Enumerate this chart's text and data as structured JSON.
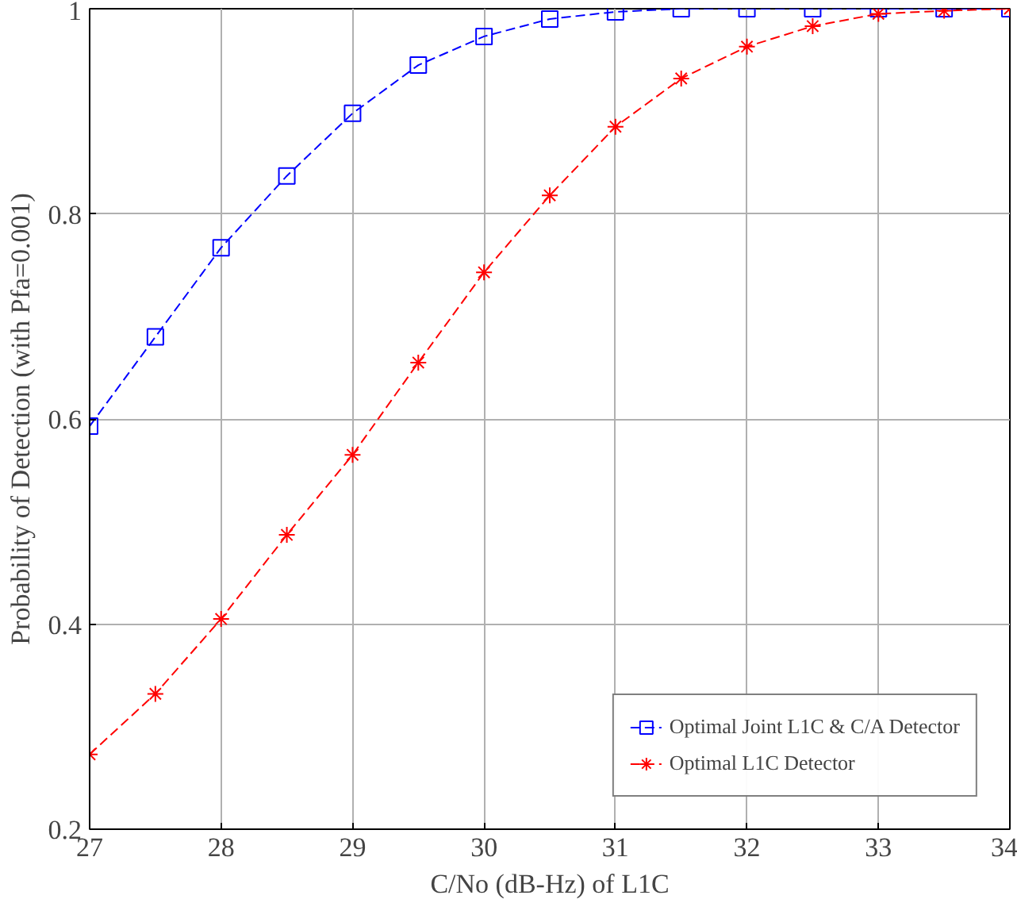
{
  "chart_data": {
    "type": "line",
    "xlabel": "C/No (dB-Hz) of L1C",
    "ylabel": "Probability of Detection (with Pfa=0.001)",
    "x": [
      27,
      27.5,
      28,
      28.5,
      29,
      29.5,
      30,
      30.5,
      31,
      31.5,
      32,
      32.5,
      33,
      33.5,
      34
    ],
    "series": [
      {
        "name": "Optimal Joint L1C & C/A Detector",
        "color": "#0000ff",
        "marker": "square",
        "values": [
          0.593,
          0.68,
          0.767,
          0.837,
          0.898,
          0.945,
          0.973,
          0.99,
          0.997,
          1.0,
          1.0,
          1.0,
          1.0,
          1.0,
          1.0
        ]
      },
      {
        "name": "Optimal L1C Detector",
        "color": "#ff0000",
        "marker": "cross",
        "values": [
          0.273,
          0.332,
          0.405,
          0.487,
          0.565,
          0.655,
          0.743,
          0.818,
          0.885,
          0.932,
          0.963,
          0.983,
          0.995,
          0.998,
          1.0
        ]
      }
    ],
    "xlim": [
      27,
      34
    ],
    "ylim": [
      0.2,
      1
    ],
    "xticks": [
      27,
      28,
      29,
      30,
      31,
      32,
      33,
      34
    ],
    "yticks": [
      0.2,
      0.4,
      0.6,
      0.8,
      1
    ],
    "grid": true,
    "legend": "bottom right",
    "line_style": "dashed"
  }
}
